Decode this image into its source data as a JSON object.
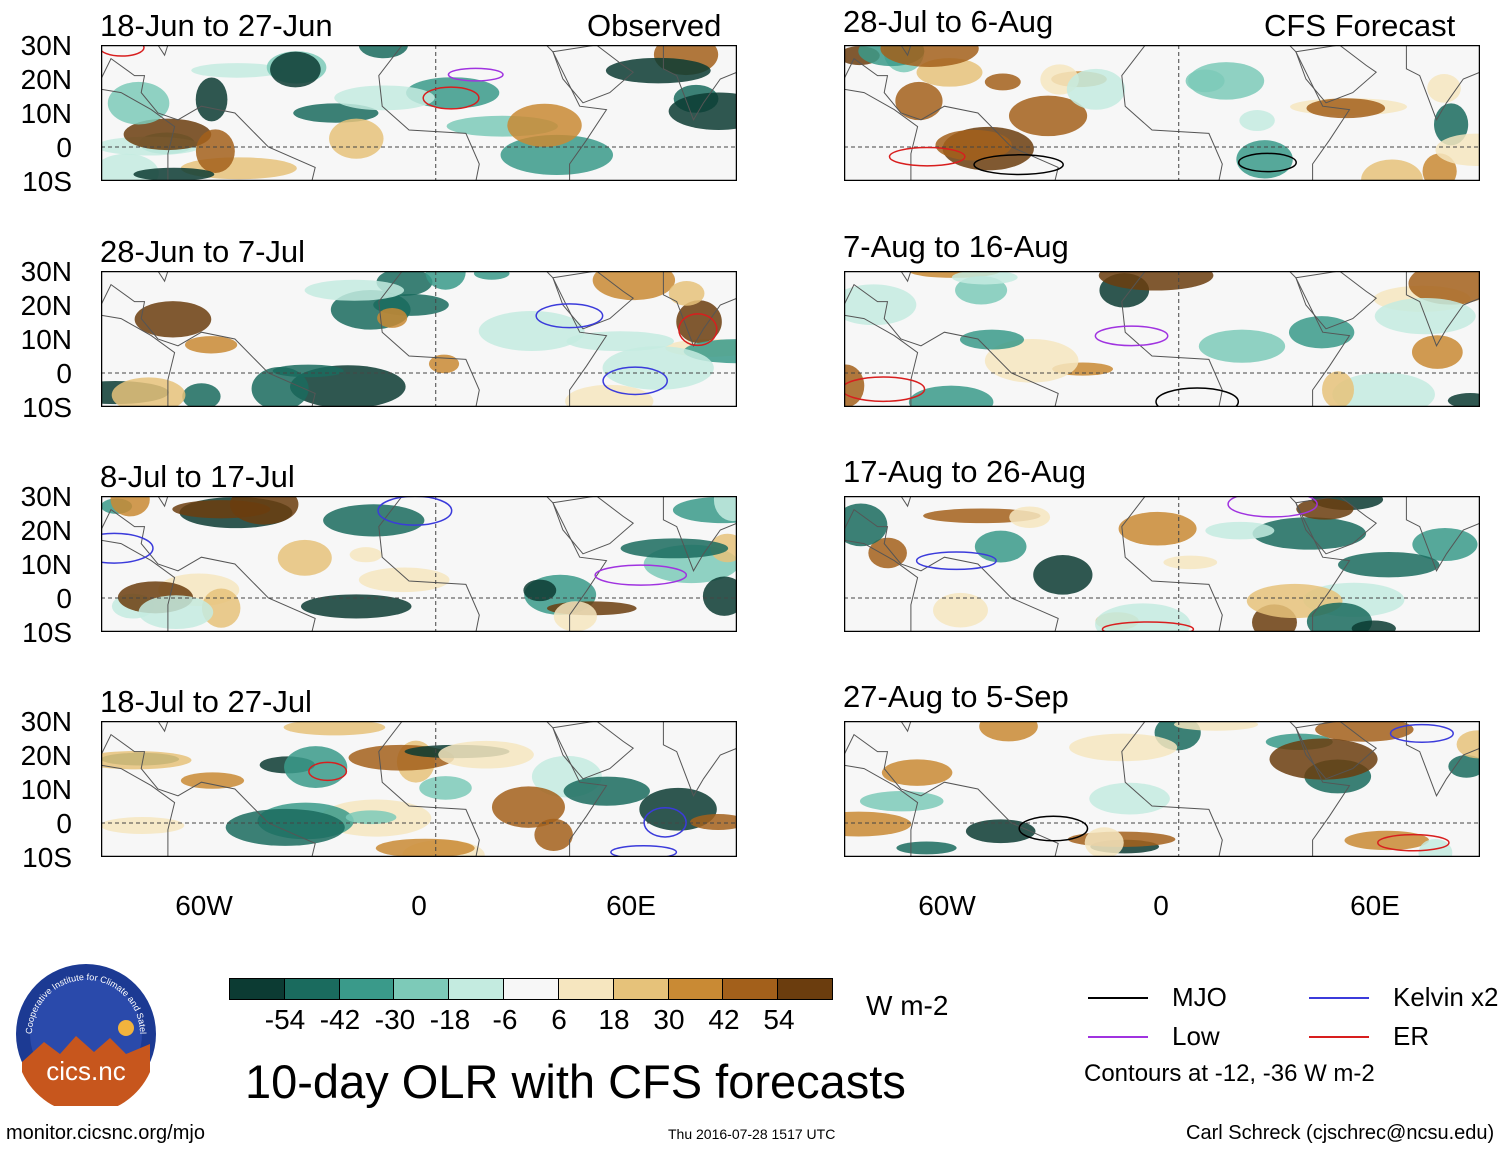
{
  "title": "10-day OLR with CFS forecasts",
  "columns": {
    "left_tag": "Observed",
    "right_tag": "CFS Forecast"
  },
  "panels_left": [
    {
      "label": "18-Jun to 27-Jun"
    },
    {
      "label": "28-Jun to 7-Jul"
    },
    {
      "label": "8-Jul to 17-Jul"
    },
    {
      "label": "18-Jul to 27-Jul"
    }
  ],
  "panels_right": [
    {
      "label": "28-Jul to 6-Aug"
    },
    {
      "label": "7-Aug to 16-Aug"
    },
    {
      "label": "17-Aug to 26-Aug"
    },
    {
      "label": "27-Aug to 5-Sep"
    }
  ],
  "lat_ticks": [
    "30N",
    "20N",
    "10N",
    "0",
    "10S"
  ],
  "lon_ticks": [
    "60W",
    "0",
    "60E"
  ],
  "colorbar": {
    "ticks": [
      "-54",
      "-42",
      "-30",
      "-18",
      "-6",
      "6",
      "18",
      "30",
      "42",
      "54"
    ],
    "colors": [
      "#0c3b33",
      "#1a6b5e",
      "#3a9a8a",
      "#7dcab8",
      "#c4ebe0",
      "#f7f7f7",
      "#f6e6bf",
      "#e6c27a",
      "#c98a34",
      "#a3601b",
      "#6b3d0e"
    ],
    "units": "W m-2"
  },
  "legend": {
    "items": [
      {
        "label": "MJO",
        "color": "#000000"
      },
      {
        "label": "Kelvin x2",
        "color": "#3b3bdb"
      },
      {
        "label": "Low",
        "color": "#a033e0"
      },
      {
        "label": "ER",
        "color": "#d81e1e"
      }
    ],
    "note": "Contours at -12, -36 W m-2"
  },
  "logo": {
    "text": "cics.nc",
    "ring_text": "Cooperative Institute for Climate and Satellites"
  },
  "footer": {
    "url": "monitor.cicsnc.org/mjo",
    "timestamp": "Thu 2016-07-28 1517 UTC",
    "author": "Carl Schreck (cjschrec@ncsu.edu)"
  }
}
